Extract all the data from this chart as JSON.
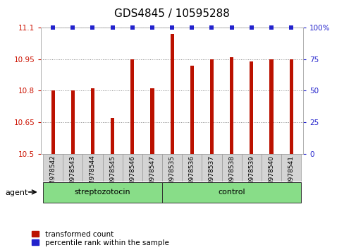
{
  "title": "GDS4845 / 10595288",
  "categories": [
    "GSM978542",
    "GSM978543",
    "GSM978544",
    "GSM978545",
    "GSM978546",
    "GSM978547",
    "GSM978535",
    "GSM978536",
    "GSM978537",
    "GSM978538",
    "GSM978539",
    "GSM978540",
    "GSM978541"
  ],
  "bar_values": [
    10.8,
    10.8,
    10.81,
    10.67,
    10.95,
    10.81,
    11.07,
    10.92,
    10.95,
    10.96,
    10.94,
    10.95,
    10.95
  ],
  "percentile_values": [
    100,
    100,
    100,
    100,
    100,
    100,
    100,
    100,
    100,
    100,
    100,
    100,
    100
  ],
  "bar_color": "#bb1100",
  "percentile_color": "#2222cc",
  "ylim_left": [
    10.5,
    11.1
  ],
  "ylim_right": [
    0,
    100
  ],
  "yticks_left": [
    10.5,
    10.65,
    10.8,
    10.95,
    11.1
  ],
  "yticks_right": [
    0,
    25,
    50,
    75,
    100
  ],
  "ytick_labels_right": [
    "0",
    "25",
    "50",
    "75",
    "100%"
  ],
  "groups": [
    {
      "label": "streptozotocin",
      "start": 0,
      "end": 6
    },
    {
      "label": "control",
      "start": 6,
      "end": 13
    }
  ],
  "group_row_label": "agent",
  "legend_items": [
    {
      "label": "transformed count",
      "color": "#bb1100"
    },
    {
      "label": "percentile rank within the sample",
      "color": "#2222cc"
    }
  ],
  "bar_width": 0.18,
  "title_fontsize": 11,
  "label_fontsize": 6.5,
  "group_fontsize": 8,
  "tick_fontsize": 7.5
}
